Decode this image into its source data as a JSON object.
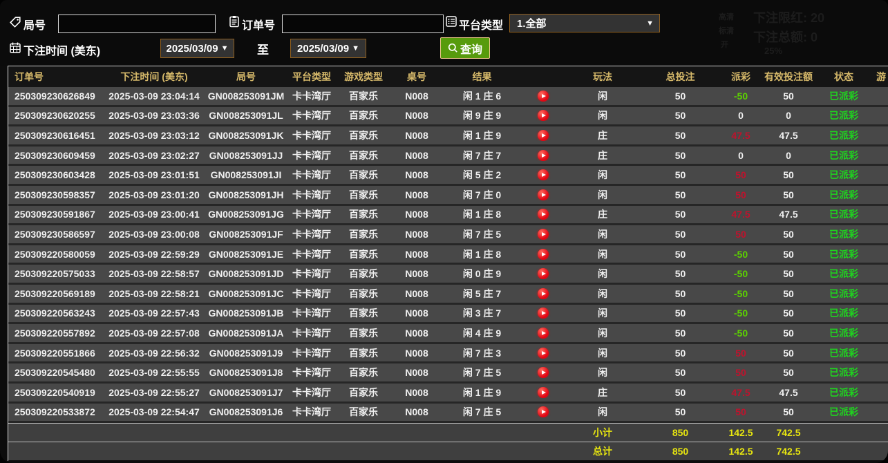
{
  "filters": {
    "round_label": "局号",
    "round_value": "",
    "order_label": "订单号",
    "order_value": "",
    "platform_label": "平台类型",
    "platform_value": "1.全部",
    "time_label": "下注时间 (美东)",
    "date_from": "2025/03/09",
    "to_label": "至",
    "date_to": "2025/03/09",
    "search_label": "查询"
  },
  "ghost_overlay": {
    "quality_hd": "高清",
    "quality_sd": "标清",
    "toggle": "开",
    "limit_text": "下注限红: 20",
    "total_text": "下注总额: 0",
    "percent": "25%"
  },
  "colors": {
    "header_text": "#d6b96a",
    "payout_positive": "#c0122c",
    "payout_negative": "#5cd200",
    "status_green": "#1fd31f",
    "totals_yellow": "#e8e60f",
    "search_button_green": "#579b0c",
    "select_border_brown": "#91601f",
    "row_bg": "#484848",
    "play_button_red": "#e20613"
  },
  "table": {
    "columns": [
      "订单号",
      "下注时间 (美东)",
      "局号",
      "平台类型",
      "游戏类型",
      "桌号",
      "结果",
      "",
      "玩法",
      "总投注",
      "派彩",
      "有效投注额",
      "状态",
      "游"
    ],
    "play_icon": "replay-play-button",
    "rows": [
      {
        "order_no": "250309230626849",
        "bet_time": "2025-03-09 23:04:14",
        "round_no": "GN008253091JM",
        "platform": "卡卡湾厅",
        "game_type": "百家乐",
        "table_no": "N008",
        "result": "闲 1 庄 6",
        "play_type": "闲",
        "total_bet": "50",
        "payout": "-50",
        "payout_color": "green",
        "valid_bet": "50",
        "status": "已派彩"
      },
      {
        "order_no": "250309230620255",
        "bet_time": "2025-03-09 23:03:36",
        "round_no": "GN008253091JL",
        "platform": "卡卡湾厅",
        "game_type": "百家乐",
        "table_no": "N008",
        "result": "闲 9 庄 9",
        "play_type": "闲",
        "total_bet": "50",
        "payout": "0",
        "payout_color": "white",
        "valid_bet": "0",
        "status": "已派彩"
      },
      {
        "order_no": "250309230616451",
        "bet_time": "2025-03-09 23:03:12",
        "round_no": "GN008253091JK",
        "platform": "卡卡湾厅",
        "game_type": "百家乐",
        "table_no": "N008",
        "result": "闲 1 庄 9",
        "play_type": "庄",
        "total_bet": "50",
        "payout": "47.5",
        "payout_color": "red",
        "valid_bet": "47.5",
        "status": "已派彩"
      },
      {
        "order_no": "250309230609459",
        "bet_time": "2025-03-09 23:02:27",
        "round_no": "GN008253091JJ",
        "platform": "卡卡湾厅",
        "game_type": "百家乐",
        "table_no": "N008",
        "result": "闲 7 庄 7",
        "play_type": "庄",
        "total_bet": "50",
        "payout": "0",
        "payout_color": "white",
        "valid_bet": "0",
        "status": "已派彩"
      },
      {
        "order_no": "250309230603428",
        "bet_time": "2025-03-09 23:01:51",
        "round_no": "GN008253091JI",
        "platform": "卡卡湾厅",
        "game_type": "百家乐",
        "table_no": "N008",
        "result": "闲 5 庄 2",
        "play_type": "闲",
        "total_bet": "50",
        "payout": "50",
        "payout_color": "red",
        "valid_bet": "50",
        "status": "已派彩"
      },
      {
        "order_no": "250309230598357",
        "bet_time": "2025-03-09 23:01:20",
        "round_no": "GN008253091JH",
        "platform": "卡卡湾厅",
        "game_type": "百家乐",
        "table_no": "N008",
        "result": "闲 7 庄 0",
        "play_type": "闲",
        "total_bet": "50",
        "payout": "50",
        "payout_color": "red",
        "valid_bet": "50",
        "status": "已派彩"
      },
      {
        "order_no": "250309230591867",
        "bet_time": "2025-03-09 23:00:41",
        "round_no": "GN008253091JG",
        "platform": "卡卡湾厅",
        "game_type": "百家乐",
        "table_no": "N008",
        "result": "闲 1 庄 8",
        "play_type": "庄",
        "total_bet": "50",
        "payout": "47.5",
        "payout_color": "red",
        "valid_bet": "47.5",
        "status": "已派彩"
      },
      {
        "order_no": "250309230586597",
        "bet_time": "2025-03-09 23:00:08",
        "round_no": "GN008253091JF",
        "platform": "卡卡湾厅",
        "game_type": "百家乐",
        "table_no": "N008",
        "result": "闲 7 庄 5",
        "play_type": "闲",
        "total_bet": "50",
        "payout": "50",
        "payout_color": "red",
        "valid_bet": "50",
        "status": "已派彩"
      },
      {
        "order_no": "250309220580059",
        "bet_time": "2025-03-09 22:59:29",
        "round_no": "GN008253091JE",
        "platform": "卡卡湾厅",
        "game_type": "百家乐",
        "table_no": "N008",
        "result": "闲 1 庄 8",
        "play_type": "闲",
        "total_bet": "50",
        "payout": "-50",
        "payout_color": "green",
        "valid_bet": "50",
        "status": "已派彩"
      },
      {
        "order_no": "250309220575033",
        "bet_time": "2025-03-09 22:58:57",
        "round_no": "GN008253091JD",
        "platform": "卡卡湾厅",
        "game_type": "百家乐",
        "table_no": "N008",
        "result": "闲 0 庄 9",
        "play_type": "闲",
        "total_bet": "50",
        "payout": "-50",
        "payout_color": "green",
        "valid_bet": "50",
        "status": "已派彩"
      },
      {
        "order_no": "250309220569189",
        "bet_time": "2025-03-09 22:58:21",
        "round_no": "GN008253091JC",
        "platform": "卡卡湾厅",
        "game_type": "百家乐",
        "table_no": "N008",
        "result": "闲 5 庄 7",
        "play_type": "闲",
        "total_bet": "50",
        "payout": "-50",
        "payout_color": "green",
        "valid_bet": "50",
        "status": "已派彩"
      },
      {
        "order_no": "250309220563243",
        "bet_time": "2025-03-09 22:57:43",
        "round_no": "GN008253091JB",
        "platform": "卡卡湾厅",
        "game_type": "百家乐",
        "table_no": "N008",
        "result": "闲 3 庄 7",
        "play_type": "闲",
        "total_bet": "50",
        "payout": "-50",
        "payout_color": "green",
        "valid_bet": "50",
        "status": "已派彩"
      },
      {
        "order_no": "250309220557892",
        "bet_time": "2025-03-09 22:57:08",
        "round_no": "GN008253091JA",
        "platform": "卡卡湾厅",
        "game_type": "百家乐",
        "table_no": "N008",
        "result": "闲 4 庄 9",
        "play_type": "闲",
        "total_bet": "50",
        "payout": "-50",
        "payout_color": "green",
        "valid_bet": "50",
        "status": "已派彩"
      },
      {
        "order_no": "250309220551866",
        "bet_time": "2025-03-09 22:56:32",
        "round_no": "GN008253091J9",
        "platform": "卡卡湾厅",
        "game_type": "百家乐",
        "table_no": "N008",
        "result": "闲 7 庄 3",
        "play_type": "闲",
        "total_bet": "50",
        "payout": "50",
        "payout_color": "red",
        "valid_bet": "50",
        "status": "已派彩"
      },
      {
        "order_no": "250309220545480",
        "bet_time": "2025-03-09 22:55:55",
        "round_no": "GN008253091J8",
        "platform": "卡卡湾厅",
        "game_type": "百家乐",
        "table_no": "N008",
        "result": "闲 7 庄 5",
        "play_type": "闲",
        "total_bet": "50",
        "payout": "50",
        "payout_color": "red",
        "valid_bet": "50",
        "status": "已派彩"
      },
      {
        "order_no": "250309220540919",
        "bet_time": "2025-03-09 22:55:27",
        "round_no": "GN008253091J7",
        "platform": "卡卡湾厅",
        "game_type": "百家乐",
        "table_no": "N008",
        "result": "闲 1 庄 9",
        "play_type": "庄",
        "total_bet": "50",
        "payout": "47.5",
        "payout_color": "red",
        "valid_bet": "47.5",
        "status": "已派彩"
      },
      {
        "order_no": "250309220533872",
        "bet_time": "2025-03-09 22:54:47",
        "round_no": "GN008253091J6",
        "platform": "卡卡湾厅",
        "game_type": "百家乐",
        "table_no": "N008",
        "result": "闲 7 庄 5",
        "play_type": "闲",
        "total_bet": "50",
        "payout": "50",
        "payout_color": "red",
        "valid_bet": "50",
        "status": "已派彩"
      }
    ],
    "subtotal": {
      "label": "小计",
      "total_bet": "850",
      "payout": "142.5",
      "valid_bet": "742.5"
    },
    "total": {
      "label": "总计",
      "total_bet": "850",
      "payout": "142.5",
      "valid_bet": "742.5"
    }
  }
}
